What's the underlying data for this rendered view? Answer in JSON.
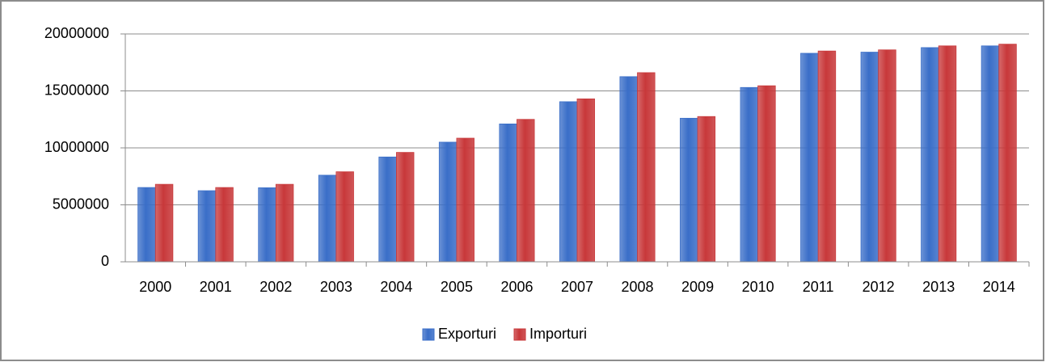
{
  "chart_data": {
    "type": "bar",
    "categories": [
      "2000",
      "2001",
      "2002",
      "2003",
      "2004",
      "2005",
      "2006",
      "2007",
      "2008",
      "2009",
      "2010",
      "2011",
      "2012",
      "2013",
      "2014"
    ],
    "series": [
      {
        "name": "Exporturi",
        "color": "#3a6ec8",
        "values": [
          6520000,
          6240000,
          6500000,
          7600000,
          9200000,
          10500000,
          12100000,
          14050000,
          16250000,
          12600000,
          15300000,
          18300000,
          18400000,
          18800000,
          18950000
        ]
      },
      {
        "name": "Importuri",
        "color": "#c8383a",
        "values": [
          6800000,
          6520000,
          6800000,
          7900000,
          9600000,
          10850000,
          12500000,
          14300000,
          16600000,
          12750000,
          15450000,
          18500000,
          18600000,
          18950000,
          19100000
        ]
      }
    ],
    "ylim": [
      0,
      20000000
    ],
    "yticks": [
      0,
      5000000,
      10000000,
      15000000,
      20000000
    ],
    "grid": true,
    "legend": "bottom"
  }
}
